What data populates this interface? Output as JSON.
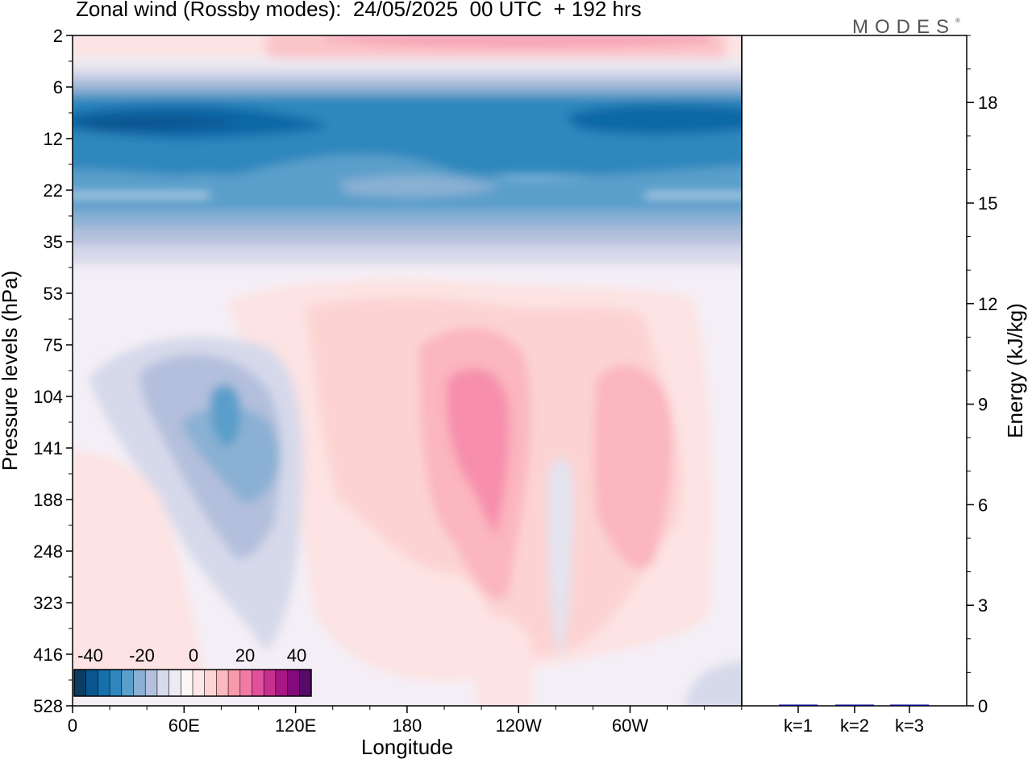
{
  "header": {
    "title": "Zonal wind (Rossby modes):  24/05/2025  00 UTC  + 192 hrs",
    "logo": "MODES",
    "logo_mark": "®"
  },
  "chart_data": [
    {
      "type": "heatmap",
      "title": "Zonal wind (Rossby modes):  24/05/2025  00 UTC  + 192 hrs",
      "xlabel": "Longitude",
      "ylabel": "Pressure levels (hPa)",
      "x_ticks": [
        "0",
        "60E",
        "120E",
        "180",
        "120W",
        "60W"
      ],
      "y_ticks": [
        "2",
        "6",
        "12",
        "22",
        "35",
        "53",
        "75",
        "104",
        "141",
        "188",
        "248",
        "323",
        "416",
        "528"
      ],
      "y_scale": "log-pressure (top = 2 hPa, bottom = 528 hPa)",
      "grid": false,
      "colorbar": {
        "placement": "bottom-left",
        "tick_labels": [
          "-40",
          "-20",
          "0",
          "20",
          "40"
        ],
        "levels": [
          -50,
          -45,
          -40,
          -35,
          -30,
          -25,
          -20,
          -15,
          -10,
          -5,
          0,
          5,
          10,
          15,
          20,
          25,
          30,
          35,
          40,
          45,
          50
        ],
        "colors": [
          "#0b3d62",
          "#0a5590",
          "#146fab",
          "#2f87bd",
          "#5a9fcb",
          "#8ab0d3",
          "#b3bfdc",
          "#d6daea",
          "#eceaf3",
          "#fdf7f8",
          "#ffe7e6",
          "#fdd3d3",
          "#fbb8bf",
          "#f899ac",
          "#f27aa5",
          "#e2509d",
          "#c8308f",
          "#a81683",
          "#830a7a",
          "#560b68"
        ]
      },
      "description_levels_hPa": [
        2,
        6,
        12,
        22,
        35,
        53,
        75,
        104,
        141,
        188,
        248,
        323,
        416,
        528
      ]
    },
    {
      "type": "bar",
      "categories": [
        "k=1",
        "k=2",
        "k=3"
      ],
      "values": [
        0.02,
        0.01,
        0.005
      ],
      "ylabel": "Energy (kJ/kg)",
      "ylim": [
        0,
        20
      ],
      "y_ticks": [
        "0",
        "3",
        "6",
        "9",
        "12",
        "15",
        "18"
      ],
      "bar_color": "#000080"
    }
  ]
}
